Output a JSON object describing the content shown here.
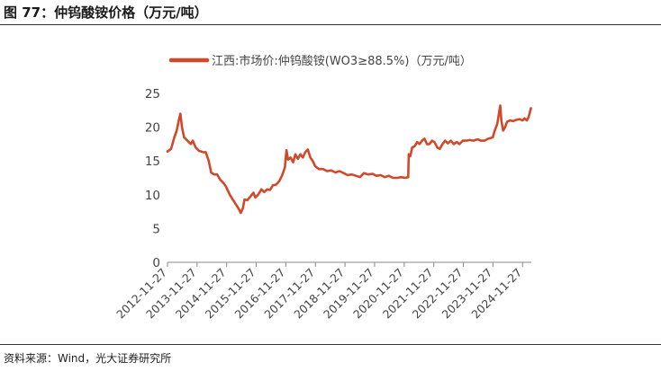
{
  "figure": {
    "title": "图 77：仲钨酸铵价格（万元/吨）",
    "source": "资料来源：Wind，光大证券研究所"
  },
  "colors": {
    "series": "#d0492a",
    "axis": "#888888"
  },
  "chart_data": {
    "type": "line",
    "legend_position": "top-left",
    "grid": false,
    "ylim": [
      0,
      25
    ],
    "yticks": [
      "0",
      "5",
      "10",
      "15",
      "20",
      "25"
    ],
    "xlim": [
      "2012-11-27",
      "2025-03-15"
    ],
    "xticks": [
      "2012-11-27",
      "2013-11-27",
      "2014-11-27",
      "2015-11-27",
      "2016-11-27",
      "2017-11-27",
      "2018-11-27",
      "2019-11-27",
      "2020-11-27",
      "2021-11-27",
      "2022-11-27",
      "2023-11-27",
      "2024-11-27"
    ],
    "series": [
      {
        "name": "江西:市场价:仲钨酸铵(WO3≥88.5%)（万元/吨）",
        "points": [
          [
            "2012-11-27",
            16.4
          ],
          [
            "2013-01-10",
            16.8
          ],
          [
            "2013-02-20",
            18.5
          ],
          [
            "2013-03-20",
            19.5
          ],
          [
            "2013-04-15",
            21.0
          ],
          [
            "2013-05-05",
            22.0
          ],
          [
            "2013-05-25",
            20.0
          ],
          [
            "2013-06-20",
            18.5
          ],
          [
            "2013-08-01",
            18.0
          ],
          [
            "2013-09-10",
            17.5
          ],
          [
            "2013-10-05",
            18.0
          ],
          [
            "2013-11-10",
            17.0
          ],
          [
            "2013-12-20",
            16.5
          ],
          [
            "2014-02-10",
            16.3
          ],
          [
            "2014-03-15",
            16.3
          ],
          [
            "2014-04-20",
            15.0
          ],
          [
            "2014-05-20",
            13.3
          ],
          [
            "2014-06-25",
            13.0
          ],
          [
            "2014-08-01",
            13.0
          ],
          [
            "2014-09-10",
            12.2
          ],
          [
            "2014-10-15",
            11.8
          ],
          [
            "2014-11-20",
            11.2
          ],
          [
            "2015-01-05",
            10.0
          ],
          [
            "2015-02-15",
            9.2
          ],
          [
            "2015-03-25",
            8.5
          ],
          [
            "2015-05-01",
            7.8
          ],
          [
            "2015-05-20",
            7.3
          ],
          [
            "2015-06-15",
            8.0
          ],
          [
            "2015-07-05",
            9.3
          ],
          [
            "2015-08-10",
            9.2
          ],
          [
            "2015-09-20",
            9.8
          ],
          [
            "2015-10-25",
            10.3
          ],
          [
            "2015-11-15",
            9.6
          ],
          [
            "2015-12-20",
            10.0
          ],
          [
            "2016-01-30",
            10.8
          ],
          [
            "2016-03-05",
            10.4
          ],
          [
            "2016-04-10",
            10.8
          ],
          [
            "2016-05-15",
            10.7
          ],
          [
            "2016-06-20",
            11.4
          ],
          [
            "2016-07-30",
            11.5
          ],
          [
            "2016-09-05",
            12.0
          ],
          [
            "2016-10-10",
            12.8
          ],
          [
            "2016-11-15",
            14.0
          ],
          [
            "2016-12-05",
            16.6
          ],
          [
            "2016-12-25",
            15.2
          ],
          [
            "2017-01-25",
            15.5
          ],
          [
            "2017-02-25",
            14.8
          ],
          [
            "2017-03-25",
            16.0
          ],
          [
            "2017-04-25",
            15.3
          ],
          [
            "2017-05-25",
            16.0
          ],
          [
            "2017-06-25",
            15.5
          ],
          [
            "2017-07-25",
            16.3
          ],
          [
            "2017-08-25",
            16.7
          ],
          [
            "2017-09-25",
            15.5
          ],
          [
            "2017-10-25",
            15.0
          ],
          [
            "2017-11-25",
            14.2
          ],
          [
            "2018-01-10",
            13.8
          ],
          [
            "2018-03-01",
            13.8
          ],
          [
            "2018-04-20",
            13.5
          ],
          [
            "2018-06-10",
            13.6
          ],
          [
            "2018-08-01",
            13.3
          ],
          [
            "2018-09-20",
            13.5
          ],
          [
            "2018-11-10",
            13.2
          ],
          [
            "2018-12-30",
            12.9
          ],
          [
            "2019-02-20",
            13.0
          ],
          [
            "2019-04-10",
            12.8
          ],
          [
            "2019-06-01",
            12.6
          ],
          [
            "2019-07-20",
            13.2
          ],
          [
            "2019-09-10",
            13.0
          ],
          [
            "2019-11-01",
            13.1
          ],
          [
            "2019-12-20",
            12.8
          ],
          [
            "2020-02-10",
            12.9
          ],
          [
            "2020-04-01",
            12.6
          ],
          [
            "2020-05-20",
            12.8
          ],
          [
            "2020-07-10",
            12.5
          ],
          [
            "2020-09-01",
            12.5
          ],
          [
            "2020-10-20",
            12.6
          ],
          [
            "2020-12-10",
            12.5
          ],
          [
            "2021-01-15",
            12.6
          ],
          [
            "2021-01-22",
            16.0
          ],
          [
            "2021-02-10",
            15.7
          ],
          [
            "2021-03-05",
            17.0
          ],
          [
            "2021-04-05",
            17.2
          ],
          [
            "2021-05-05",
            17.8
          ],
          [
            "2021-06-05",
            17.5
          ],
          [
            "2021-07-05",
            18.0
          ],
          [
            "2021-08-05",
            18.3
          ],
          [
            "2021-09-05",
            17.5
          ],
          [
            "2021-10-05",
            17.5
          ],
          [
            "2021-11-05",
            18.0
          ],
          [
            "2021-12-05",
            17.8
          ],
          [
            "2022-01-10",
            17.0
          ],
          [
            "2022-02-10",
            16.8
          ],
          [
            "2022-03-15",
            17.5
          ],
          [
            "2022-04-15",
            18.0
          ],
          [
            "2022-05-20",
            17.6
          ],
          [
            "2022-06-25",
            18.0
          ],
          [
            "2022-08-01",
            17.5
          ],
          [
            "2022-09-05",
            17.8
          ],
          [
            "2022-10-10",
            17.5
          ],
          [
            "2022-11-20",
            18.0
          ],
          [
            "2023-01-05",
            18.0
          ],
          [
            "2023-02-15",
            18.1
          ],
          [
            "2023-04-01",
            18.0
          ],
          [
            "2023-05-20",
            18.2
          ],
          [
            "2023-07-01",
            18.0
          ],
          [
            "2023-08-15",
            18.0
          ],
          [
            "2023-10-01",
            18.3
          ],
          [
            "2023-11-01",
            18.4
          ],
          [
            "2023-11-25",
            18.5
          ],
          [
            "2023-12-20",
            19.5
          ],
          [
            "2024-01-20",
            20.5
          ],
          [
            "2024-02-25",
            23.2
          ],
          [
            "2024-03-10",
            21.0
          ],
          [
            "2024-04-01",
            19.5
          ],
          [
            "2024-04-25",
            20.0
          ],
          [
            "2024-05-20",
            20.8
          ],
          [
            "2024-06-25",
            21.0
          ],
          [
            "2024-08-01",
            20.9
          ],
          [
            "2024-09-15",
            21.1
          ],
          [
            "2024-10-25",
            21.2
          ],
          [
            "2024-11-25",
            21.0
          ],
          [
            "2024-12-20",
            21.3
          ],
          [
            "2025-01-20",
            21.0
          ],
          [
            "2025-02-10",
            21.5
          ],
          [
            "2025-03-10",
            22.8
          ]
        ]
      }
    ]
  }
}
